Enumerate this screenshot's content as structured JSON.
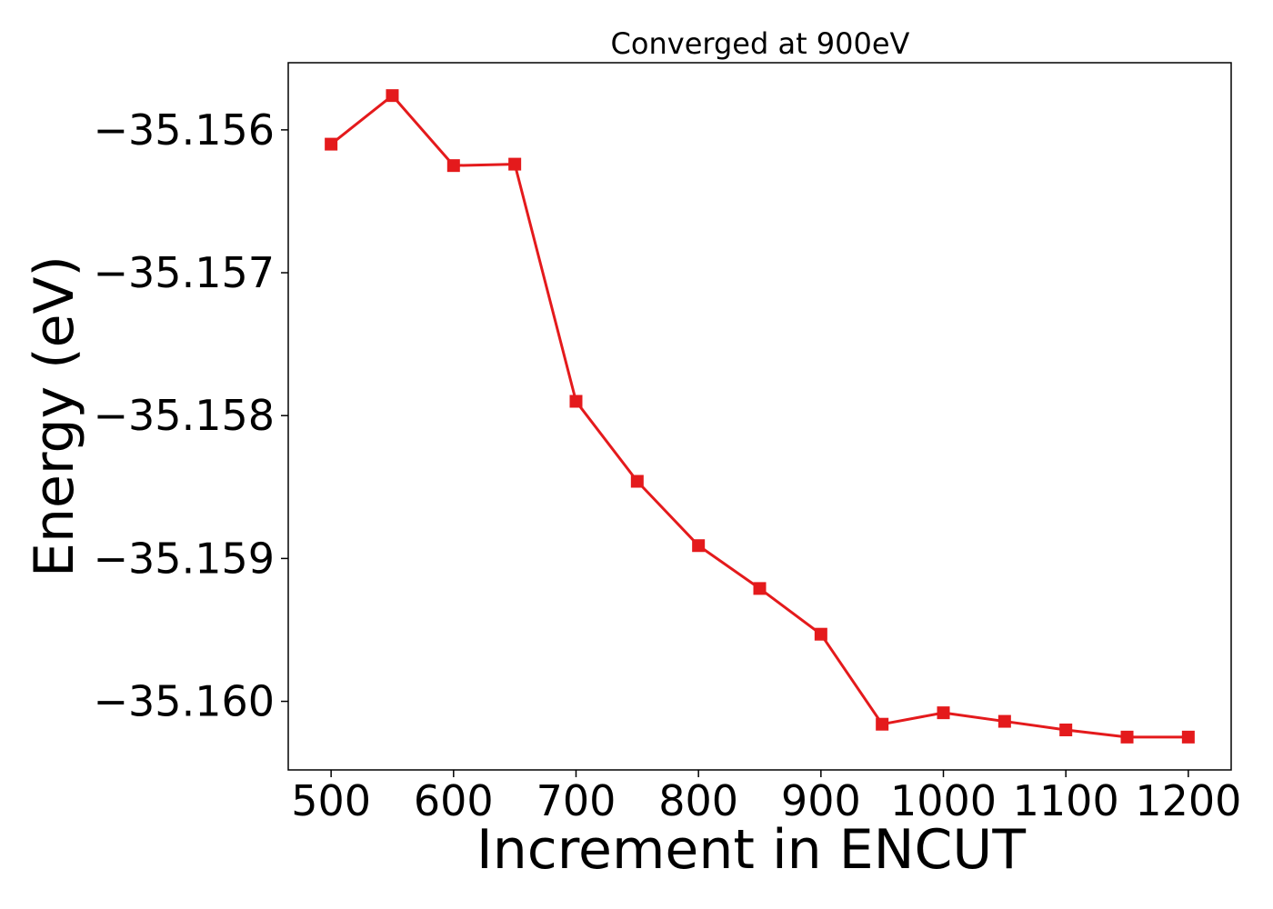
{
  "chart_data": {
    "type": "line",
    "title": "Converged at 900eV",
    "xlabel": "Increment in ENCUT",
    "ylabel": "Energy (eV)",
    "xlim": [
      465,
      1235
    ],
    "ylim": [
      -35.16048,
      -35.15553
    ],
    "xticks": [
      500,
      600,
      700,
      800,
      900,
      1000,
      1100,
      1200
    ],
    "xtick_labels": [
      "500",
      "600",
      "700",
      "800",
      "900",
      "1000",
      "1100",
      "1200"
    ],
    "yticks": [
      -35.156,
      -35.157,
      -35.158,
      -35.159,
      -35.16
    ],
    "ytick_labels": [
      "−35.156",
      "−35.157",
      "−35.158",
      "−35.159",
      "−35.160"
    ],
    "grid": false,
    "series": [
      {
        "color": "#e41a1c",
        "marker": "square",
        "x": [
          500,
          550,
          600,
          650,
          700,
          750,
          800,
          850,
          900,
          950,
          1000,
          1050,
          1100,
          1150,
          1200
        ],
        "y": [
          -35.1561,
          -35.15576,
          -35.15625,
          -35.15624,
          -35.1579,
          -35.15846,
          -35.15891,
          -35.15921,
          -35.15953,
          -35.16016,
          -35.16008,
          -35.16014,
          -35.1602,
          -35.16025,
          -35.16025
        ]
      }
    ]
  }
}
